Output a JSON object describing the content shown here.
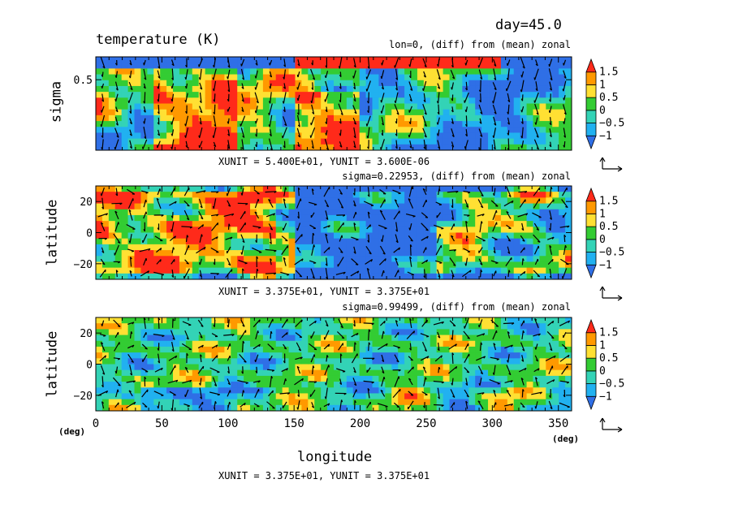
{
  "header": {
    "day_label": "day=45.0",
    "main_title": "temperature (K)"
  },
  "colors": {
    "palette": [
      "#2f6fe6",
      "#21b1f0",
      "#33d3b6",
      "#33cc33",
      "#ffe033",
      "#ff9900",
      "#ff2a1a"
    ],
    "levels": [
      -1,
      -0.5,
      0,
      0.5,
      1,
      1.5
    ]
  },
  "chart_data": [
    {
      "type": "heatmap",
      "title": "temperature (K)",
      "subtitle": "lon=0, (diff) from (mean) zonal",
      "xlabel": "",
      "ylabel": "sigma",
      "yticks": [
        "0.5"
      ],
      "ylim": [
        0,
        1
      ],
      "units_note": "XUNIT = 5.400E+01, YUNIT = 3.600E-06",
      "colorbar_labels": [
        "1.5",
        "1",
        "0.5",
        "0",
        "−0.5",
        "−1"
      ]
    },
    {
      "type": "heatmap",
      "subtitle": "sigma=0.22953, (diff) from (mean) zonal",
      "xlabel": "",
      "ylabel": "latitude",
      "yticks": [
        "20",
        "0",
        "−20"
      ],
      "ylim": [
        -30,
        30
      ],
      "units_note": "XUNIT = 3.375E+01, YUNIT = 3.375E+01",
      "colorbar_labels": [
        "1.5",
        "1",
        "0.5",
        "0",
        "−0.5",
        "−1"
      ]
    },
    {
      "type": "heatmap",
      "subtitle": "sigma=0.99499, (diff) from (mean) zonal",
      "xlabel": "longitude",
      "ylabel": "latitude",
      "xticks": [
        "0",
        "50",
        "100",
        "150",
        "200",
        "250",
        "300",
        "350"
      ],
      "yticks": [
        "20",
        "0",
        "−20"
      ],
      "xlim": [
        0,
        360
      ],
      "ylim": [
        -30,
        30
      ],
      "x_unit": "(deg)",
      "y_unit": "(deg)",
      "units_note": "XUNIT = 3.375E+01, YUNIT = 3.375E+01",
      "colorbar_labels": [
        "1.5",
        "1",
        "0.5",
        "0",
        "−0.5",
        "−1"
      ]
    }
  ]
}
